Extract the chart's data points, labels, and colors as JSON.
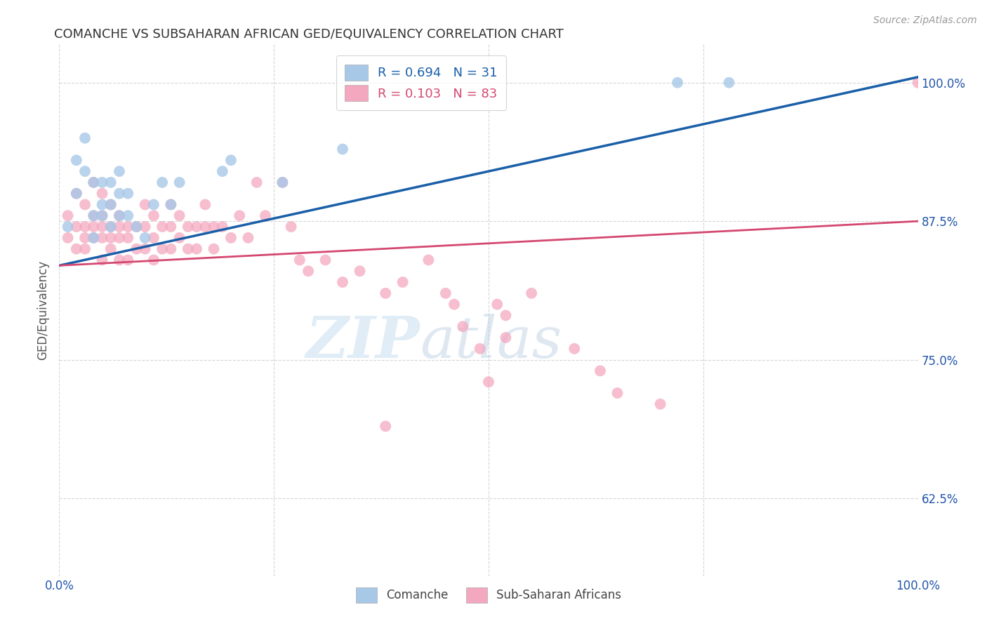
{
  "title": "COMANCHE VS SUBSAHARAN AFRICAN GED/EQUIVALENCY CORRELATION CHART",
  "source": "Source: ZipAtlas.com",
  "ylabel": "GED/Equivalency",
  "ytick_labels": [
    "62.5%",
    "75.0%",
    "87.5%",
    "100.0%"
  ],
  "ytick_values": [
    0.625,
    0.75,
    0.875,
    1.0
  ],
  "xlim": [
    0.0,
    1.0
  ],
  "ylim": [
    0.555,
    1.035
  ],
  "legend_blue_label": "R = 0.694   N = 31",
  "legend_pink_label": "R = 0.103   N = 83",
  "comanche_label": "Comanche",
  "subsaharan_label": "Sub-Saharan Africans",
  "blue_color": "#a8c8e8",
  "pink_color": "#f4a8c0",
  "blue_line_color": "#1a5fa8",
  "pink_line_color": "#d44870",
  "watermark_zip": "ZIP",
  "watermark_atlas": "atlas",
  "blue_line_x0": 0.0,
  "blue_line_y0": 0.835,
  "blue_line_x1": 1.0,
  "blue_line_y1": 1.005,
  "pink_line_x0": 0.0,
  "pink_line_y0": 0.835,
  "pink_line_x1": 1.0,
  "pink_line_y1": 0.875,
  "comanche_x": [
    0.01,
    0.02,
    0.02,
    0.03,
    0.03,
    0.04,
    0.04,
    0.04,
    0.05,
    0.05,
    0.05,
    0.06,
    0.06,
    0.06,
    0.07,
    0.07,
    0.07,
    0.08,
    0.08,
    0.09,
    0.1,
    0.11,
    0.12,
    0.13,
    0.14,
    0.19,
    0.2,
    0.26,
    0.33,
    0.72,
    0.78
  ],
  "comanche_y": [
    0.87,
    0.93,
    0.9,
    0.95,
    0.92,
    0.91,
    0.88,
    0.86,
    0.91,
    0.89,
    0.88,
    0.91,
    0.89,
    0.87,
    0.92,
    0.9,
    0.88,
    0.9,
    0.88,
    0.87,
    0.86,
    0.89,
    0.91,
    0.89,
    0.91,
    0.92,
    0.93,
    0.91,
    0.94,
    1.0,
    1.0
  ],
  "subsaharan_x": [
    0.01,
    0.01,
    0.02,
    0.02,
    0.02,
    0.03,
    0.03,
    0.03,
    0.03,
    0.04,
    0.04,
    0.04,
    0.04,
    0.05,
    0.05,
    0.05,
    0.05,
    0.05,
    0.06,
    0.06,
    0.06,
    0.06,
    0.07,
    0.07,
    0.07,
    0.07,
    0.08,
    0.08,
    0.08,
    0.09,
    0.09,
    0.1,
    0.1,
    0.1,
    0.11,
    0.11,
    0.11,
    0.12,
    0.12,
    0.13,
    0.13,
    0.13,
    0.14,
    0.14,
    0.15,
    0.15,
    0.16,
    0.16,
    0.17,
    0.17,
    0.18,
    0.18,
    0.19,
    0.2,
    0.21,
    0.22,
    0.23,
    0.24,
    0.26,
    0.27,
    0.28,
    0.29,
    0.31,
    0.33,
    0.35,
    0.38,
    0.4,
    0.43,
    0.45,
    0.46,
    0.47,
    0.49,
    0.51,
    0.52,
    0.52,
    0.55,
    0.6,
    0.63,
    0.65,
    0.7,
    0.5,
    0.38,
    1.0
  ],
  "subsaharan_y": [
    0.88,
    0.86,
    0.9,
    0.87,
    0.85,
    0.89,
    0.87,
    0.86,
    0.85,
    0.91,
    0.88,
    0.87,
    0.86,
    0.9,
    0.88,
    0.87,
    0.86,
    0.84,
    0.89,
    0.87,
    0.86,
    0.85,
    0.88,
    0.87,
    0.86,
    0.84,
    0.87,
    0.86,
    0.84,
    0.87,
    0.85,
    0.89,
    0.87,
    0.85,
    0.88,
    0.86,
    0.84,
    0.87,
    0.85,
    0.89,
    0.87,
    0.85,
    0.88,
    0.86,
    0.87,
    0.85,
    0.87,
    0.85,
    0.89,
    0.87,
    0.87,
    0.85,
    0.87,
    0.86,
    0.88,
    0.86,
    0.91,
    0.88,
    0.91,
    0.87,
    0.84,
    0.83,
    0.84,
    0.82,
    0.83,
    0.81,
    0.82,
    0.84,
    0.81,
    0.8,
    0.78,
    0.76,
    0.8,
    0.79,
    0.77,
    0.81,
    0.76,
    0.74,
    0.72,
    0.71,
    0.73,
    0.69,
    1.0
  ]
}
